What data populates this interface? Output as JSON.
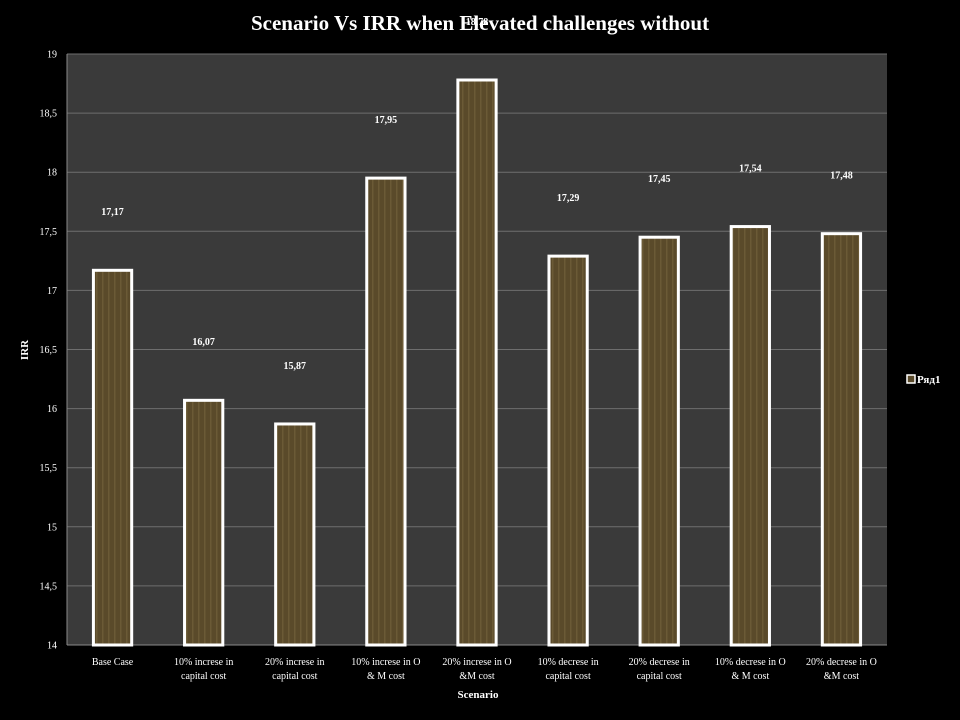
{
  "chart_data": {
    "type": "bar",
    "title": "Scenario Vs IRR when Elevated challenges without",
    "xlabel": "Scenario",
    "ylabel": "IRR",
    "ylim": [
      14,
      19
    ],
    "ytick_step": 0.5,
    "yticks": [
      "14",
      "14,5",
      "15",
      "15,5",
      "16",
      "16,5",
      "17",
      "17,5",
      "18",
      "18,5",
      "19"
    ],
    "grid": true,
    "legend_position": "right",
    "categories": [
      [
        "Base Case"
      ],
      [
        "10% increse in",
        "capital cost"
      ],
      [
        "20% increse in",
        "capital cost"
      ],
      [
        "10% increse in O",
        "& M cost"
      ],
      [
        "20% increse in O",
        "&M cost"
      ],
      [
        "10% decrese in",
        "capital cost"
      ],
      [
        "20% decrese in",
        "capital cost"
      ],
      [
        "10% decrese in O",
        "& M cost"
      ],
      [
        "20% decrese in O",
        "&M cost"
      ]
    ],
    "series": [
      {
        "name": "Ряд1",
        "values": [
          17.17,
          16.07,
          15.87,
          17.95,
          18.78,
          17.29,
          17.45,
          17.54,
          17.48
        ],
        "labels": [
          "17,17",
          "16,07",
          "15,87",
          "17,95",
          "18,78",
          "17,29",
          "17,45",
          "17,54",
          "17,48"
        ]
      }
    ],
    "colors": {
      "background": "#000000",
      "plot_area": "#3a3a3a",
      "gridline": "#6e6e6e",
      "bar_fill": "#5a4a2a",
      "bar_stripe": "#6b5a36",
      "bar_edge": "#ffffff"
    }
  }
}
